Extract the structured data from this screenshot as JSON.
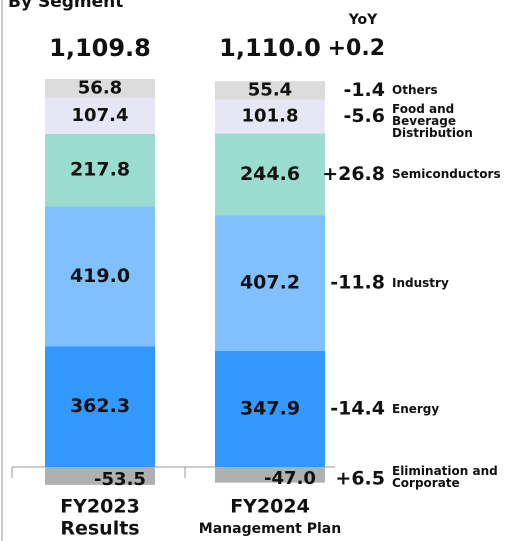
{
  "chart_data": {
    "type": "stacked_bar",
    "title": "By Segment",
    "yoy_title": "YoY",
    "categories": [
      "FY2023",
      "FY2024"
    ],
    "category_sublabels": [
      "Results",
      "Management Plan"
    ],
    "totals": [
      1109.8,
      1110.0
    ],
    "total_labels": [
      "1,109.8",
      "1,110.0"
    ],
    "total_yoy": {
      "value": 0.2,
      "label": "+0.2"
    },
    "series": [
      {
        "name": "Energy",
        "color": "#3399ff",
        "values": [
          362.3,
          347.9
        ],
        "value_labels": [
          "362.3",
          "347.9"
        ],
        "yoy": {
          "value": -14.4,
          "label": "-14.4"
        }
      },
      {
        "name": "Industry",
        "color": "#80c0ff",
        "values": [
          419.0,
          407.2
        ],
        "value_labels": [
          "419.0",
          "407.2"
        ],
        "yoy": {
          "value": -11.8,
          "label": "-11.8"
        }
      },
      {
        "name": "Semiconductors",
        "color": "#9adcd0",
        "values": [
          217.8,
          244.6
        ],
        "value_labels": [
          "217.8",
          "244.6"
        ],
        "yoy": {
          "value": 26.8,
          "label": "+26.8"
        }
      },
      {
        "name": "Food and Beverage Distribution",
        "color": "#e6e6f5",
        "values": [
          107.4,
          101.8
        ],
        "value_labels": [
          "107.4",
          "101.8"
        ],
        "yoy": {
          "value": -5.6,
          "label": "-5.6"
        }
      },
      {
        "name": "Others",
        "color": "#dcdcdc",
        "values": [
          56.8,
          55.4
        ],
        "value_labels": [
          "56.8",
          "55.4"
        ],
        "yoy": {
          "value": -1.4,
          "label": "-1.4"
        }
      },
      {
        "name": "Elimination and Corporate",
        "color": "#b0b0b0",
        "values": [
          -53.5,
          -47.0
        ],
        "value_labels": [
          "-53.5",
          "-47.0"
        ],
        "yoy": {
          "value": 6.5,
          "label": "+6.5"
        }
      }
    ]
  }
}
